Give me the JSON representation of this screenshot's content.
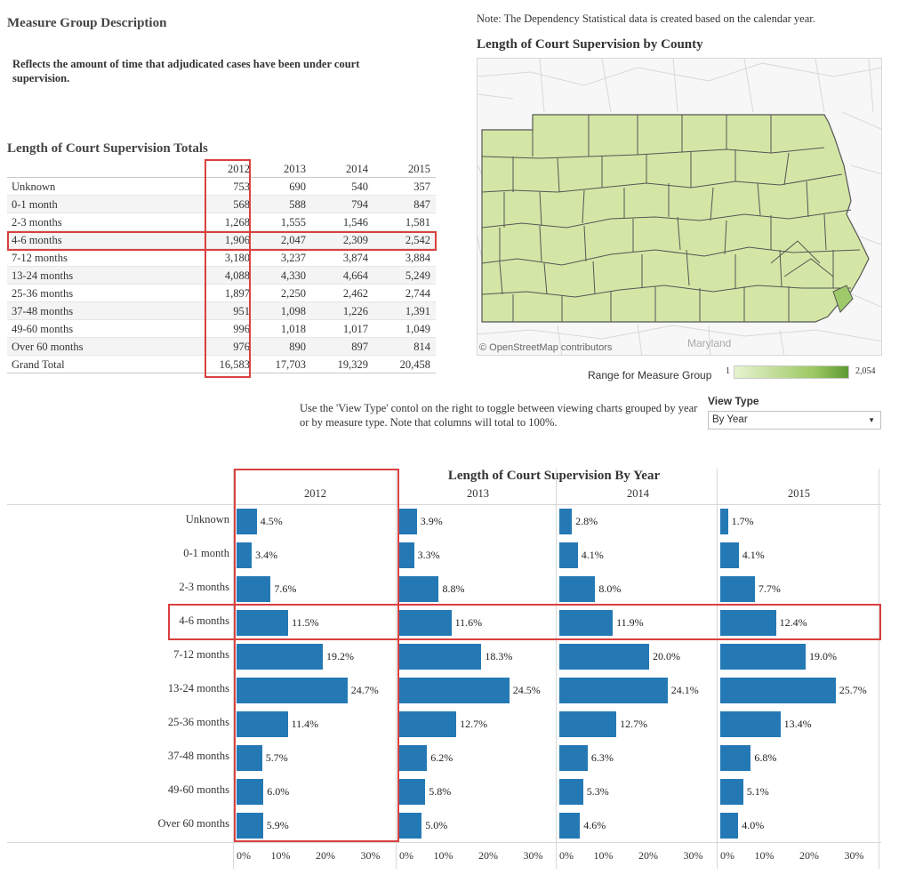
{
  "header": {
    "measure_title": "Measure Group Description",
    "measure_desc": "Reflects the amount of time that adjudicated cases have been under court supervision.",
    "note": "Note: The Dependency Statistical data is created based on the calendar year."
  },
  "totals": {
    "title": "Length of Court Supervision Totals",
    "years": [
      "2012",
      "2013",
      "2014",
      "2015"
    ],
    "rows": [
      {
        "label": "Unknown",
        "values": [
          "753",
          "690",
          "540",
          "357"
        ]
      },
      {
        "label": "0-1 month",
        "values": [
          "568",
          "588",
          "794",
          "847"
        ]
      },
      {
        "label": "2-3 months",
        "values": [
          "1,268",
          "1,555",
          "1,546",
          "1,581"
        ]
      },
      {
        "label": "4-6 months",
        "values": [
          "1,906",
          "2,047",
          "2,309",
          "2,542"
        ]
      },
      {
        "label": "7-12 months",
        "values": [
          "3,180",
          "3,237",
          "3,874",
          "3,884"
        ]
      },
      {
        "label": "13-24 months",
        "values": [
          "4,088",
          "4,330",
          "4,664",
          "5,249"
        ]
      },
      {
        "label": "25-36 months",
        "values": [
          "1,897",
          "2,250",
          "2,462",
          "2,744"
        ]
      },
      {
        "label": "37-48 months",
        "values": [
          "951",
          "1,098",
          "1,226",
          "1,391"
        ]
      },
      {
        "label": "49-60 months",
        "values": [
          "996",
          "1,018",
          "1,017",
          "1,049"
        ]
      },
      {
        "label": "Over 60 months",
        "values": [
          "976",
          "890",
          "897",
          "814"
        ]
      },
      {
        "label": "Grand Total",
        "values": [
          "16,583",
          "17,703",
          "19,329",
          "20,458"
        ]
      }
    ]
  },
  "map": {
    "title": "Length of Court Supervision by County",
    "attribution": "© OpenStreetMap contributors",
    "state_label": "Maryland",
    "legend_label": "Range for  Measure Group",
    "legend_min": "1",
    "legend_max": "2,054",
    "fill_color": "#d4e6a5",
    "highlight_color": "#9fca6b",
    "border_color": "#555555"
  },
  "view_type": {
    "instructions": "Use the 'View Type' contol on the right to toggle between viewing charts grouped by year or by measure type.  Note that columns will total to 100%.",
    "label": "View Type",
    "selected": "By Year",
    "arrow": "▼"
  },
  "chart_data": {
    "type": "bar",
    "title": "Length of Court Supervision By Year",
    "orientation": "horizontal",
    "categories": [
      "Unknown",
      "0-1 month",
      "2-3 months",
      "4-6 months",
      "7-12 months",
      "13-24 months",
      "25-36 months",
      "37-48 months",
      "49-60 months",
      "Over 60 months"
    ],
    "panels": [
      {
        "name": "2012",
        "values": [
          4.5,
          3.4,
          7.6,
          11.5,
          19.2,
          24.7,
          11.4,
          5.7,
          6.0,
          5.9
        ]
      },
      {
        "name": "2013",
        "values": [
          3.9,
          3.3,
          8.8,
          11.6,
          18.3,
          24.5,
          12.7,
          6.2,
          5.8,
          5.0
        ]
      },
      {
        "name": "2014",
        "values": [
          2.8,
          4.1,
          8.0,
          11.9,
          20.0,
          24.1,
          12.7,
          6.3,
          5.3,
          4.6
        ]
      },
      {
        "name": "2015",
        "values": [
          1.7,
          4.1,
          7.7,
          12.4,
          19.0,
          25.7,
          13.4,
          6.8,
          5.1,
          4.0
        ]
      }
    ],
    "xlim": [
      0,
      33
    ],
    "xticks": [
      "0%",
      "10%",
      "20%",
      "30%"
    ],
    "value_suffix": "%",
    "bar_color": "#2479b5",
    "highlight_color": "#d9413f"
  }
}
